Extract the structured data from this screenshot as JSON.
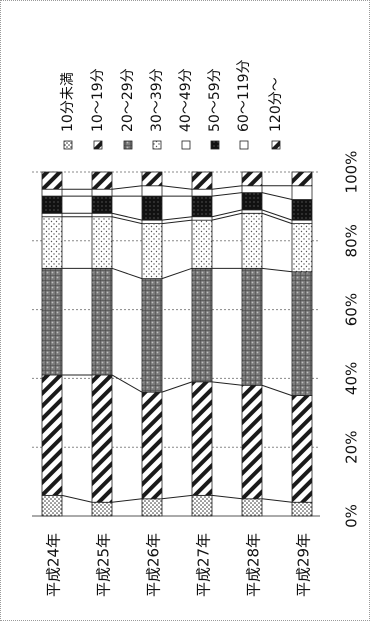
{
  "chart_data": {
    "type": "bar",
    "orientation": "horizontal-stacked-100",
    "categories": [
      "平成24年",
      "平成25年",
      "平成26年",
      "平成27年",
      "平成28年",
      "平成29年"
    ],
    "series": [
      {
        "name": "10分未満",
        "pattern": "dots",
        "values": [
          6,
          4,
          5,
          6,
          5,
          4
        ]
      },
      {
        "name": "10～19分",
        "pattern": "diagonal",
        "values": [
          35,
          37,
          31,
          33,
          33,
          31
        ]
      },
      {
        "name": "20～29分",
        "pattern": "crosshatch",
        "values": [
          31,
          31,
          33,
          33,
          34,
          36
        ]
      },
      {
        "name": "30～39分",
        "pattern": "light-dots",
        "values": [
          15,
          15,
          16,
          14,
          16,
          14
        ]
      },
      {
        "name": "40～49分",
        "pattern": "white",
        "values": [
          1,
          1,
          1,
          1,
          1,
          1
        ]
      },
      {
        "name": "50～59分",
        "pattern": "black-grid",
        "values": [
          5,
          5,
          7,
          6,
          5,
          6
        ]
      },
      {
        "name": "60～119分",
        "pattern": "white",
        "values": [
          2,
          2,
          3,
          2,
          2,
          4
        ]
      },
      {
        "name": "120分～",
        "pattern": "diagonal",
        "values": [
          5,
          5,
          4,
          5,
          4,
          4
        ]
      }
    ],
    "xlim": [
      0,
      100
    ],
    "ticks": [
      "0%",
      "20%",
      "40%",
      "60%",
      "80%",
      "100%"
    ],
    "grid": true,
    "legend_position": "top",
    "series_lines": true
  }
}
